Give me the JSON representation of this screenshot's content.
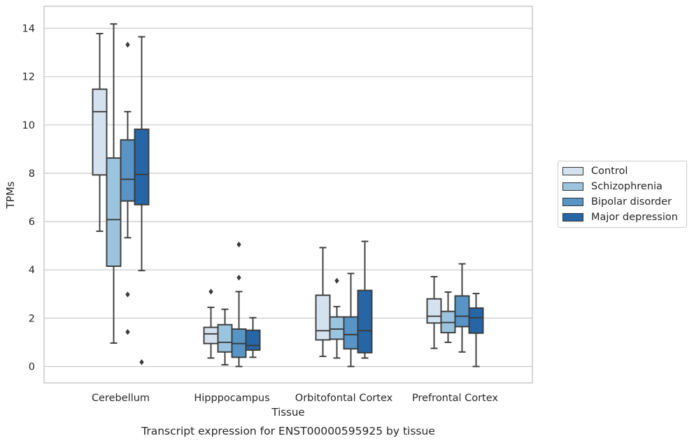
{
  "chart_data": {
    "type": "box",
    "xlabel": "Tissue",
    "ylabel": "TPMs",
    "caption": "Transcript expression for ENST00000595925 by tissue",
    "ylim": [
      -0.7,
      14.8
    ],
    "yticks": [
      0,
      2,
      4,
      6,
      8,
      10,
      12,
      14
    ],
    "grid": "horizontal",
    "legend_position": "right",
    "categories": [
      "Cerebellum",
      "Hipppocampus",
      "Orbitofontal Cortex",
      "Prefrontal Cortex"
    ],
    "series": [
      {
        "name": "Control",
        "color": "#d4e2f0",
        "boxes": [
          {
            "whisker_low": 5.6,
            "q1": 7.93,
            "median": 10.55,
            "q3": 11.48,
            "whisker_high": 13.78,
            "outliers": []
          },
          {
            "whisker_low": 0.35,
            "q1": 0.95,
            "median": 1.35,
            "q3": 1.62,
            "whisker_high": 2.45,
            "outliers": [
              3.1
            ]
          },
          {
            "whisker_low": 0.42,
            "q1": 1.1,
            "median": 1.48,
            "q3": 2.95,
            "whisker_high": 4.92,
            "outliers": []
          },
          {
            "whisker_low": 0.75,
            "q1": 1.8,
            "median": 2.08,
            "q3": 2.8,
            "whisker_high": 3.72,
            "outliers": []
          }
        ]
      },
      {
        "name": "Schizophrenia",
        "color": "#9cc4de",
        "boxes": [
          {
            "whisker_low": 0.97,
            "q1": 4.15,
            "median": 6.08,
            "q3": 8.63,
            "whisker_high": 14.18,
            "outliers": []
          },
          {
            "whisker_low": 0.07,
            "q1": 0.6,
            "median": 1.0,
            "q3": 1.73,
            "whisker_high": 2.37,
            "outliers": []
          },
          {
            "whisker_low": 0.35,
            "q1": 1.13,
            "median": 1.55,
            "q3": 2.05,
            "whisker_high": 2.48,
            "outliers": [
              3.55
            ]
          },
          {
            "whisker_low": 1.0,
            "q1": 1.4,
            "median": 1.82,
            "q3": 2.28,
            "whisker_high": 3.08,
            "outliers": []
          }
        ]
      },
      {
        "name": "Bipolar disorder",
        "color": "#5894c5",
        "boxes": [
          {
            "whisker_low": 5.33,
            "q1": 6.85,
            "median": 7.75,
            "q3": 9.38,
            "whisker_high": 10.55,
            "outliers": [
              13.32,
              2.98,
              1.43
            ]
          },
          {
            "whisker_low": 0.0,
            "q1": 0.38,
            "median": 0.95,
            "q3": 1.55,
            "whisker_high": 3.1,
            "outliers": [
              5.05,
              3.68
            ]
          },
          {
            "whisker_low": 0.0,
            "q1": 0.73,
            "median": 1.32,
            "q3": 2.05,
            "whisker_high": 3.85,
            "outliers": []
          },
          {
            "whisker_low": 0.6,
            "q1": 1.65,
            "median": 2.08,
            "q3": 2.92,
            "whisker_high": 4.25,
            "outliers": []
          }
        ]
      },
      {
        "name": "Major depression",
        "color": "#2666a6",
        "boxes": [
          {
            "whisker_low": 3.97,
            "q1": 6.7,
            "median": 7.95,
            "q3": 9.82,
            "whisker_high": 13.65,
            "outliers": [
              0.18
            ]
          },
          {
            "whisker_low": 0.38,
            "q1": 0.68,
            "median": 0.87,
            "q3": 1.5,
            "whisker_high": 2.02,
            "outliers": []
          },
          {
            "whisker_low": 0.35,
            "q1": 0.57,
            "median": 1.48,
            "q3": 3.15,
            "whisker_high": 5.18,
            "outliers": []
          },
          {
            "whisker_low": 0.0,
            "q1": 1.38,
            "median": 2.02,
            "q3": 2.42,
            "whisker_high": 3.02,
            "outliers": []
          }
        ]
      }
    ]
  }
}
